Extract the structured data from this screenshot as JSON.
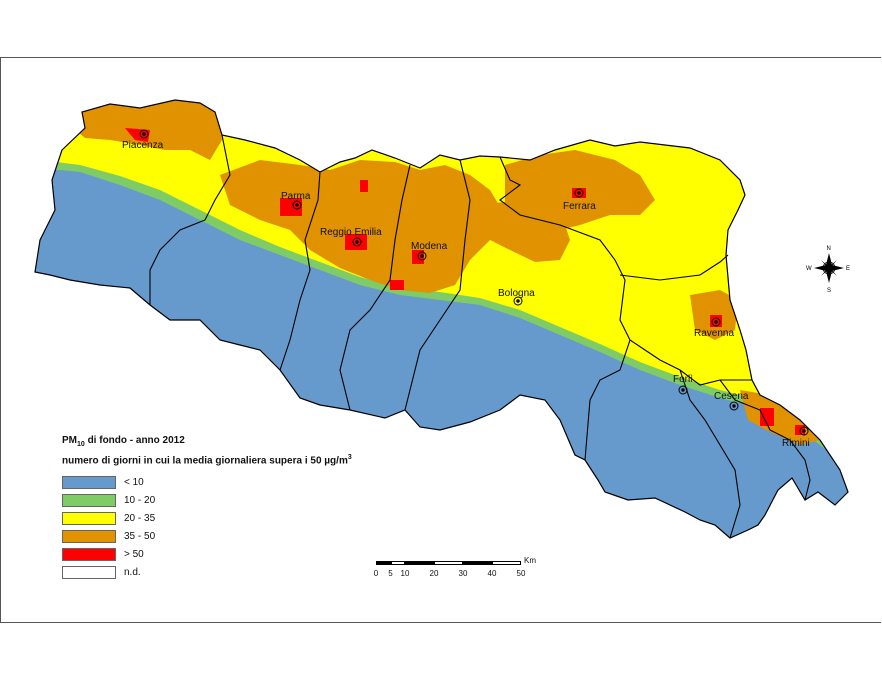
{
  "legend": {
    "title_main": "PM",
    "title_sub": "10",
    "title_rest": " di fondo - anno 2012",
    "subtitle_main": "numero di giorni in cui la media giornaliera supera i 50 µg/m",
    "subtitle_sup": "3",
    "items": [
      {
        "label": "< 10",
        "color": "#6699cc"
      },
      {
        "label": "10 - 20",
        "color": "#7fcc66"
      },
      {
        "label": "20 - 35",
        "color": "#ffff00"
      },
      {
        "label": "35 - 50",
        "color": "#e09200"
      },
      {
        "label": "> 50",
        "color": "#ff0000"
      },
      {
        "label": "n.d.",
        "color": "#ffffff"
      }
    ]
  },
  "cities": [
    "Piacenza",
    "Parma",
    "Reggio Emilia",
    "Modena",
    "Ferrara",
    "Bologna",
    "Ravenna",
    "Forlì",
    "Cesena",
    "Rimini"
  ],
  "compass": {
    "n": "N",
    "s": "S",
    "e": "E",
    "w": "W"
  },
  "scale": {
    "unit": "Km",
    "ticks": [
      "0",
      "5",
      "10",
      "20",
      "30",
      "40",
      "50"
    ]
  }
}
